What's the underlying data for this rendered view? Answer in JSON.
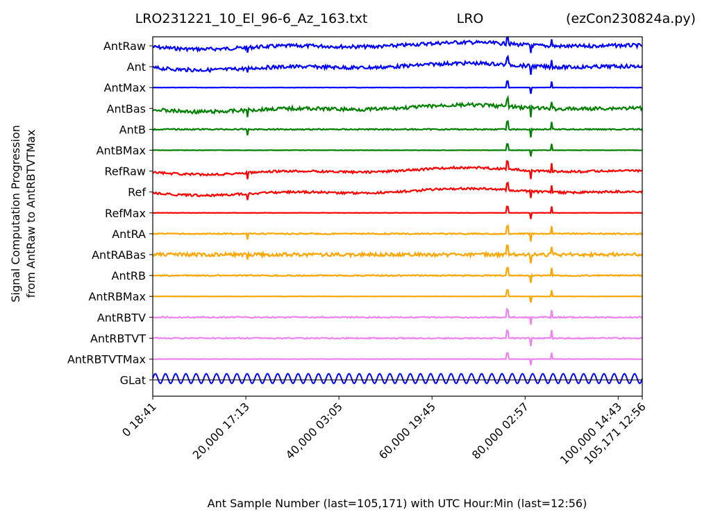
{
  "chart_data": {
    "type": "line",
    "title_left": "LRO231221_10_El_96-6_Az_163.txt",
    "title_center": "LRO",
    "title_right": "(ezCon230824a.py)",
    "xlabel": "Ant Sample Number (last=105,171) with UTC Hour:Min (last=12:56)",
    "ylabel_line1": "Signal Computation Progression",
    "ylabel_line2": "from AntRaw to AntRBTVTMax",
    "xlim": [
      0,
      105171
    ],
    "x_ticks": [
      {
        "value": 0,
        "label": "0  18:41"
      },
      {
        "value": 20000,
        "label": "20,000  17:13"
      },
      {
        "value": 40000,
        "label": "40,000  03:05"
      },
      {
        "value": 60000,
        "label": "60,000  19:45"
      },
      {
        "value": 80000,
        "label": "80,000  02:57"
      },
      {
        "value": 100000,
        "label": "100,000  14:43"
      },
      {
        "value": 105171,
        "label": "105,171  12:56"
      }
    ],
    "series": [
      {
        "name": "AntRaw",
        "color": "#0000ff",
        "noise": "high",
        "drift": true
      },
      {
        "name": "Ant",
        "color": "#0000ff",
        "noise": "high",
        "drift": true
      },
      {
        "name": "AntMax",
        "color": "#0000ff",
        "noise": "flat",
        "drift": false
      },
      {
        "name": "AntBas",
        "color": "#008000",
        "noise": "high",
        "drift": true
      },
      {
        "name": "AntB",
        "color": "#008000",
        "noise": "low",
        "drift": false
      },
      {
        "name": "AntBMax",
        "color": "#008000",
        "noise": "flat",
        "drift": false
      },
      {
        "name": "RefRaw",
        "color": "#ff0000",
        "noise": "medium",
        "drift": true
      },
      {
        "name": "Ref",
        "color": "#ff0000",
        "noise": "medium",
        "drift": true
      },
      {
        "name": "RefMax",
        "color": "#ff0000",
        "noise": "flat",
        "drift": false
      },
      {
        "name": "AntRA",
        "color": "#ffa500",
        "noise": "low",
        "drift": false
      },
      {
        "name": "AntRABas",
        "color": "#ffa500",
        "noise": "high",
        "drift": false
      },
      {
        "name": "AntRB",
        "color": "#ffa500",
        "noise": "low",
        "drift": false
      },
      {
        "name": "AntRBMax",
        "color": "#ffa500",
        "noise": "flat",
        "drift": false
      },
      {
        "name": "AntRBTV",
        "color": "#ee82ee",
        "noise": "low",
        "drift": false
      },
      {
        "name": "AntRBTVT",
        "color": "#ee82ee",
        "noise": "low",
        "drift": false
      },
      {
        "name": "AntRBTVTMax",
        "color": "#ee82ee",
        "noise": "flat",
        "drift": false
      },
      {
        "name": "GLat",
        "color": "#0000ff",
        "noise": "sine",
        "drift": false
      }
    ],
    "glat_cycles": 48,
    "spike_samples": [
      20400,
      76200,
      81200,
      85700
    ]
  }
}
